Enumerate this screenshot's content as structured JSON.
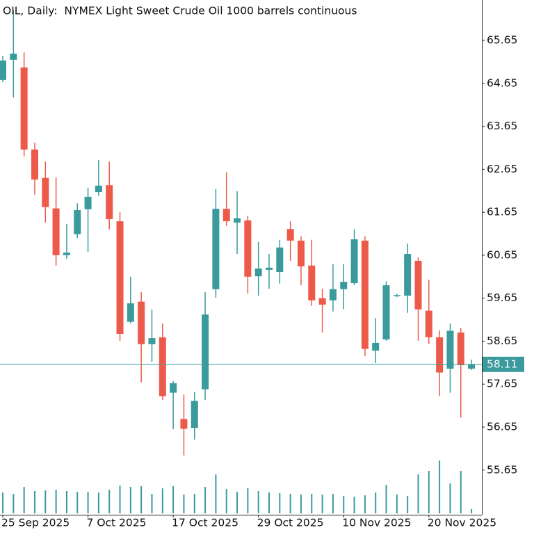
{
  "chart_data": {
    "type": "candlestick",
    "title": "OIL, Daily:  NYMEX Light Sweet Crude Oil 1000 barrels continuous",
    "categories": [
      "25 Sep 2025",
      null,
      null,
      null,
      null,
      null,
      null,
      null,
      "7 Oct 2025",
      null,
      null,
      null,
      null,
      null,
      null,
      null,
      "17 Oct 2025",
      null,
      null,
      null,
      null,
      null,
      null,
      null,
      "29 Oct 2025",
      null,
      null,
      null,
      null,
      null,
      null,
      null,
      "10 Nov 2025",
      null,
      null,
      null,
      null,
      null,
      null,
      null,
      "20 Nov 2025",
      null,
      null,
      null,
      null
    ],
    "open": [
      64.73,
      65.2,
      65.02,
      63.11,
      62.45,
      61.74,
      60.65,
      61.14,
      61.72,
      62.12,
      62.28,
      61.44,
      59.1,
      59.57,
      58.58,
      58.74,
      57.45,
      56.84,
      56.63,
      57.53,
      59.86,
      61.73,
      61.41,
      61.46,
      60.16,
      60.31,
      60.26,
      61.26,
      60.99,
      60.41,
      59.65,
      59.6,
      59.86,
      60.0,
      60.99,
      58.43,
      58.69,
      59.7,
      59.71,
      60.52,
      59.36,
      58.74,
      58.01,
      58.85,
      58.01
    ],
    "high": [
      65.29,
      66.35,
      65.37,
      63.27,
      62.83,
      62.46,
      61.38,
      61.86,
      62.22,
      62.87,
      62.83,
      61.65,
      60.15,
      59.79,
      59.39,
      59.06,
      57.72,
      57.41,
      57.47,
      59.79,
      62.19,
      62.58,
      62.14,
      61.57,
      60.96,
      60.68,
      61.01,
      61.44,
      61.09,
      61.01,
      59.87,
      60.44,
      60.44,
      61.25,
      61.09,
      59.19,
      60.04,
      59.75,
      60.92,
      60.6,
      60.08,
      58.9,
      59.06,
      58.95,
      58.22
    ],
    "low": [
      64.68,
      64.32,
      62.95,
      62.06,
      61.41,
      60.41,
      60.57,
      61.05,
      60.73,
      62.03,
      61.25,
      58.66,
      59.06,
      57.69,
      58.17,
      57.28,
      56.6,
      55.99,
      56.36,
      57.28,
      59.66,
      61.33,
      60.68,
      59.76,
      59.71,
      59.87,
      59.99,
      60.52,
      59.95,
      59.47,
      58.85,
      59.34,
      59.39,
      59.95,
      58.3,
      58.14,
      58.66,
      59.68,
      59.31,
      58.66,
      58.58,
      57.37,
      57.45,
      56.87,
      57.98
    ],
    "close": [
      65.18,
      65.34,
      63.11,
      62.41,
      61.77,
      60.65,
      60.71,
      61.7,
      62.01,
      62.27,
      61.49,
      58.82,
      59.53,
      58.58,
      58.72,
      57.37,
      57.67,
      56.61,
      57.26,
      59.27,
      61.73,
      61.44,
      61.51,
      60.15,
      60.34,
      60.36,
      60.83,
      60.99,
      60.39,
      59.6,
      59.5,
      59.86,
      60.03,
      61.02,
      58.47,
      58.61,
      59.95,
      59.72,
      60.68,
      59.39,
      58.74,
      57.92,
      58.89,
      58.09,
      58.11
    ],
    "volume": [
      30,
      28,
      38,
      32,
      33,
      34,
      32,
      31,
      31,
      30,
      34,
      40,
      38,
      39,
      28,
      36,
      39,
      27,
      28,
      38,
      56,
      35,
      31,
      36,
      32,
      30,
      29,
      28,
      27,
      28,
      27,
      28,
      25,
      24,
      26,
      30,
      41,
      27,
      25,
      56,
      61,
      76,
      43,
      61,
      6
    ],
    "vlim": [
      0,
      100
    ],
    "ylim": [
      54.61,
      66.59
    ],
    "yticks": [
      65.65,
      64.65,
      63.65,
      62.65,
      61.65,
      60.65,
      59.65,
      58.65,
      57.65,
      56.65,
      55.65
    ],
    "last_price": 58.11,
    "up_color": "#3a9a9c",
    "down_color": "#ee5a4a"
  }
}
